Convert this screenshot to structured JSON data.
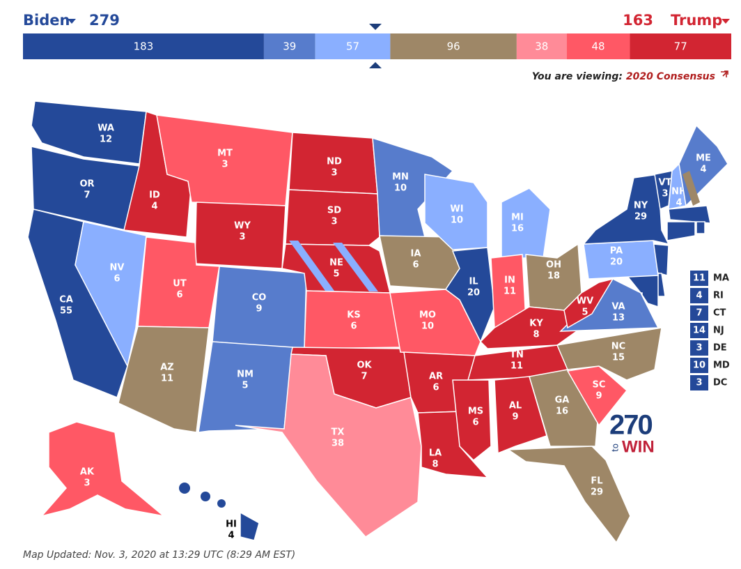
{
  "header": {
    "left_name": "Biden",
    "left_total": "279",
    "right_total": "163",
    "right_name": "Trump"
  },
  "bar": {
    "segments": [
      {
        "value": 183,
        "color": "#244999"
      },
      {
        "value": 39,
        "color": "#577ccc"
      },
      {
        "value": 57,
        "color": "#8aafff"
      },
      {
        "value": 96,
        "color": "#9e8767"
      },
      {
        "value": 38,
        "color": "#ff8b98"
      },
      {
        "value": 48,
        "color": "#ff5865"
      },
      {
        "value": 77,
        "color": "#d22532"
      }
    ]
  },
  "viewing": {
    "prefix": "You are viewing:",
    "link": "2020 Consensus"
  },
  "states": [
    {
      "abbr": "WA",
      "ev": "12",
      "color": "#244999"
    },
    {
      "abbr": "OR",
      "ev": "7",
      "color": "#244999"
    },
    {
      "abbr": "CA",
      "ev": "55",
      "color": "#244999"
    },
    {
      "abbr": "NV",
      "ev": "6",
      "color": "#8aafff"
    },
    {
      "abbr": "ID",
      "ev": "4",
      "color": "#d22532"
    },
    {
      "abbr": "MT",
      "ev": "3",
      "color": "#ff5865"
    },
    {
      "abbr": "WY",
      "ev": "3",
      "color": "#d22532"
    },
    {
      "abbr": "UT",
      "ev": "6",
      "color": "#ff5865"
    },
    {
      "abbr": "AZ",
      "ev": "11",
      "color": "#9e8767"
    },
    {
      "abbr": "CO",
      "ev": "9",
      "color": "#577ccc"
    },
    {
      "abbr": "NM",
      "ev": "5",
      "color": "#577ccc"
    },
    {
      "abbr": "ND",
      "ev": "3",
      "color": "#d22532"
    },
    {
      "abbr": "SD",
      "ev": "3",
      "color": "#d22532"
    },
    {
      "abbr": "NE",
      "ev": "5",
      "color": "#d22532"
    },
    {
      "abbr": "KS",
      "ev": "6",
      "color": "#ff5865"
    },
    {
      "abbr": "OK",
      "ev": "7",
      "color": "#d22532"
    },
    {
      "abbr": "TX",
      "ev": "38",
      "color": "#ff8b98"
    },
    {
      "abbr": "MN",
      "ev": "10",
      "color": "#577ccc"
    },
    {
      "abbr": "IA",
      "ev": "6",
      "color": "#9e8767"
    },
    {
      "abbr": "MO",
      "ev": "10",
      "color": "#ff5865"
    },
    {
      "abbr": "AR",
      "ev": "6",
      "color": "#d22532"
    },
    {
      "abbr": "LA",
      "ev": "8",
      "color": "#d22532"
    },
    {
      "abbr": "WI",
      "ev": "10",
      "color": "#8aafff"
    },
    {
      "abbr": "IL",
      "ev": "20",
      "color": "#244999"
    },
    {
      "abbr": "MI",
      "ev": "16",
      "color": "#8aafff"
    },
    {
      "abbr": "IN",
      "ev": "11",
      "color": "#ff5865"
    },
    {
      "abbr": "OH",
      "ev": "18",
      "color": "#9e8767"
    },
    {
      "abbr": "KY",
      "ev": "8",
      "color": "#d22532"
    },
    {
      "abbr": "TN",
      "ev": "11",
      "color": "#d22532"
    },
    {
      "abbr": "MS",
      "ev": "6",
      "color": "#d22532"
    },
    {
      "abbr": "AL",
      "ev": "9",
      "color": "#d22532"
    },
    {
      "abbr": "GA",
      "ev": "16",
      "color": "#9e8767"
    },
    {
      "abbr": "FL",
      "ev": "29",
      "color": "#9e8767"
    },
    {
      "abbr": "SC",
      "ev": "9",
      "color": "#ff5865"
    },
    {
      "abbr": "NC",
      "ev": "15",
      "color": "#9e8767"
    },
    {
      "abbr": "VA",
      "ev": "13",
      "color": "#577ccc"
    },
    {
      "abbr": "WV",
      "ev": "5",
      "color": "#d22532"
    },
    {
      "abbr": "PA",
      "ev": "20",
      "color": "#8aafff"
    },
    {
      "abbr": "NY",
      "ev": "29",
      "color": "#244999"
    },
    {
      "abbr": "VT",
      "ev": "3",
      "color": "#244999"
    },
    {
      "abbr": "NH",
      "ev": "4",
      "color": "#8aafff"
    },
    {
      "abbr": "ME",
      "ev": "4",
      "color": "#577ccc"
    },
    {
      "abbr": "AK",
      "ev": "3",
      "color": "#ff5865"
    },
    {
      "abbr": "HI",
      "ev": "4",
      "color": "#244999"
    }
  ],
  "small_states": [
    {
      "ev": "11",
      "abbr": "MA",
      "color": "#244999"
    },
    {
      "ev": "4",
      "abbr": "RI",
      "color": "#244999"
    },
    {
      "ev": "7",
      "abbr": "CT",
      "color": "#244999"
    },
    {
      "ev": "14",
      "abbr": "NJ",
      "color": "#244999"
    },
    {
      "ev": "3",
      "abbr": "DE",
      "color": "#244999"
    },
    {
      "ev": "10",
      "abbr": "MD",
      "color": "#244999"
    },
    {
      "ev": "3",
      "abbr": "DC",
      "color": "#244999"
    }
  ],
  "logo": {
    "number": "270",
    "to": "to",
    "win": "WIN"
  },
  "footer": "Map Updated: Nov. 3, 2020 at 13:29 UTC (8:29 AM EST)"
}
